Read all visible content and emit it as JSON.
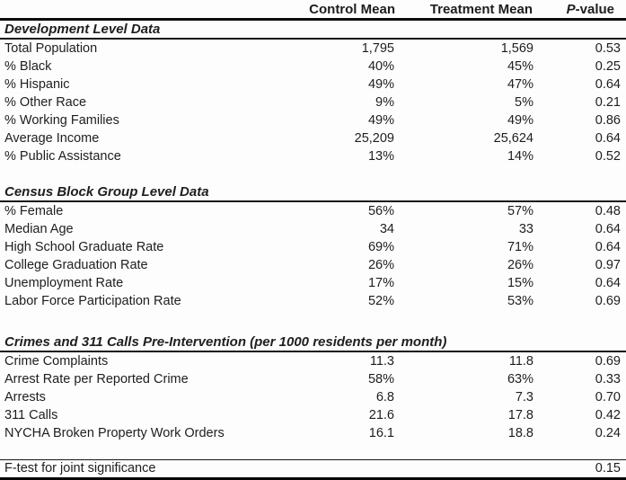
{
  "page": {
    "background_color": "#fdfdfd",
    "text_color": "#1e1e1e",
    "rule_color": "#0d0d0d"
  },
  "table": {
    "header": {
      "row_label": "",
      "control": "Control Mean",
      "treatment": "Treatment Mean",
      "p_prefix": "P",
      "p_suffix": "-value"
    },
    "sections": [
      {
        "title": "Development Level Data",
        "rows": [
          [
            "Total Population",
            "1,795",
            "1,569",
            "0.53"
          ],
          [
            "% Black",
            "40%",
            "45%",
            "0.25"
          ],
          [
            "% Hispanic",
            "49%",
            "47%",
            "0.64"
          ],
          [
            "% Other Race",
            "9%",
            "5%",
            "0.21"
          ],
          [
            "% Working Families",
            "49%",
            "49%",
            "0.86"
          ],
          [
            "Average Income",
            "25,209",
            "25,624",
            "0.64"
          ],
          [
            "% Public Assistance",
            "13%",
            "14%",
            "0.52"
          ]
        ]
      },
      {
        "title": "Census Block Group Level Data",
        "rows": [
          [
            "% Female",
            "56%",
            "57%",
            "0.48"
          ],
          [
            "Median Age",
            "34",
            "33",
            "0.64"
          ],
          [
            "High School Graduate Rate",
            "69%",
            "71%",
            "0.64"
          ],
          [
            "College Graduation Rate",
            "26%",
            "26%",
            "0.97"
          ],
          [
            "Unemployment Rate",
            "17%",
            "15%",
            "0.64"
          ],
          [
            "Labor Force Participation Rate",
            "52%",
            "53%",
            "0.69"
          ]
        ]
      },
      {
        "title": "Crimes and 311 Calls Pre-Intervention (per 1000 residents per month)",
        "rows": [
          [
            "Crime Complaints",
            "11.3",
            "11.8",
            "0.69"
          ],
          [
            "Arrest Rate per Reported Crime",
            "58%",
            "63%",
            "0.33"
          ],
          [
            "Arrests",
            "6.8",
            "7.3",
            "0.70"
          ],
          [
            "311 Calls",
            "21.6",
            "17.8",
            "0.42"
          ],
          [
            "NYCHA Broken Property Work Orders",
            "16.1",
            "18.8",
            "0.24"
          ]
        ]
      }
    ],
    "footer": {
      "label": "F-test for joint significance",
      "control": "",
      "treatment": "",
      "p": "0.15"
    }
  },
  "chart_data": {
    "type": "table",
    "columns": [
      "",
      "Control Mean",
      "Treatment Mean",
      "P-value"
    ],
    "sections": [
      {
        "title": "Development Level Data",
        "rows": [
          [
            "Total Population",
            "1,795",
            "1,569",
            "0.53"
          ],
          [
            "% Black",
            "40%",
            "45%",
            "0.25"
          ],
          [
            "% Hispanic",
            "49%",
            "47%",
            "0.64"
          ],
          [
            "% Other Race",
            "9%",
            "5%",
            "0.21"
          ],
          [
            "% Working Families",
            "49%",
            "49%",
            "0.86"
          ],
          [
            "Average Income",
            "25,209",
            "25,624",
            "0.64"
          ],
          [
            "% Public Assistance",
            "13%",
            "14%",
            "0.52"
          ]
        ]
      },
      {
        "title": "Census Block Group Level Data",
        "rows": [
          [
            "% Female",
            "56%",
            "57%",
            "0.48"
          ],
          [
            "Median Age",
            "34",
            "33",
            "0.64"
          ],
          [
            "High School Graduate Rate",
            "69%",
            "71%",
            "0.64"
          ],
          [
            "College Graduation Rate",
            "26%",
            "26%",
            "0.97"
          ],
          [
            "Unemployment Rate",
            "17%",
            "15%",
            "0.64"
          ],
          [
            "Labor Force Participation Rate",
            "52%",
            "53%",
            "0.69"
          ]
        ]
      },
      {
        "title": "Crimes and 311 Calls Pre-Intervention (per 1000 residents per month)",
        "rows": [
          [
            "Crime Complaints",
            "11.3",
            "11.8",
            "0.69"
          ],
          [
            "Arrest Rate per Reported Crime",
            "58%",
            "63%",
            "0.33"
          ],
          [
            "Arrests",
            "6.8",
            "7.3",
            "0.70"
          ],
          [
            "311 Calls",
            "21.6",
            "17.8",
            "0.42"
          ],
          [
            "NYCHA Broken Property Work Orders",
            "16.1",
            "18.8",
            "0.24"
          ]
        ]
      }
    ],
    "footer_row": [
      "F-test for joint significance",
      "",
      "",
      "0.15"
    ]
  }
}
